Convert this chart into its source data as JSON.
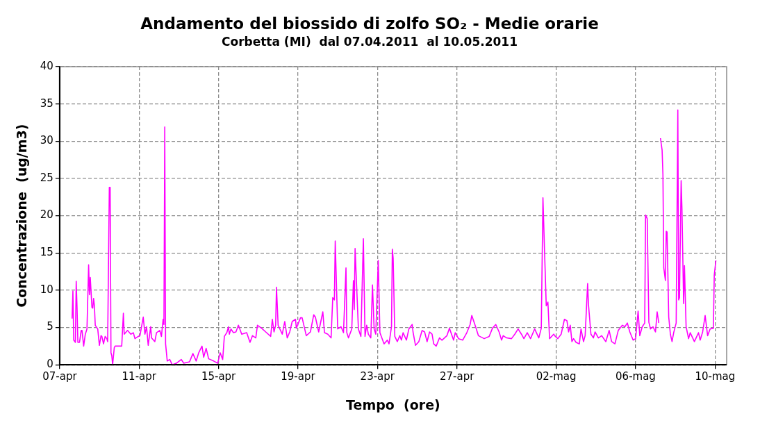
{
  "chart_data": {
    "type": "line",
    "title": "Andamento del biossido di zolfo SO₂ - Medie orarie",
    "subtitle": "Corbetta (MI)  dal 07.04.2011  al 10.05.2011",
    "xlabel": "Tempo  (ore)",
    "ylabel": "Concentrazione  (ug/m3)",
    "xlim": [
      "2011-04-07T00:00",
      "2011-05-10T14:00"
    ],
    "xticks": [
      {
        "value": "2011-04-07",
        "label": "07-apr"
      },
      {
        "value": "2011-04-11",
        "label": "11-apr"
      },
      {
        "value": "2011-04-15",
        "label": "15-apr"
      },
      {
        "value": "2011-04-19",
        "label": "19-apr"
      },
      {
        "value": "2011-04-23",
        "label": "23-apr"
      },
      {
        "value": "2011-04-27",
        "label": "27-apr"
      },
      {
        "value": "2011-05-02",
        "label": "02-mag"
      },
      {
        "value": "2011-05-06",
        "label": "06-mag"
      },
      {
        "value": "2011-05-10",
        "label": "10-mag"
      }
    ],
    "ylim": [
      0,
      40
    ],
    "yticks": [
      0,
      5,
      10,
      15,
      20,
      25,
      30,
      35,
      40
    ],
    "grid": true,
    "line_style": "solid",
    "series": [
      {
        "color": "#ff00ff",
        "x": [
          "2011-04-07T15:00",
          "2011-04-07T16:00",
          "2011-04-07T17:00",
          "2011-04-07T19:00",
          "2011-04-07T20:00",
          "2011-04-07T21:00",
          "2011-04-07T22:00",
          "2011-04-08T00:00",
          "2011-04-08T02:00",
          "2011-04-08T03:00",
          "2011-04-08T05:00",
          "2011-04-08T07:00",
          "2011-04-08T09:00",
          "2011-04-08T11:00",
          "2011-04-08T12:00",
          "2011-04-08T13:00",
          "2011-04-08T15:00",
          "2011-04-08T16:00",
          "2011-04-08T17:00",
          "2011-04-08T18:00",
          "2011-04-08T19:00",
          "2011-04-08T22:00",
          "2011-04-09T00:00",
          "2011-04-09T02:00",
          "2011-04-09T03:00",
          "2011-04-09T05:00",
          "2011-04-09T07:00",
          "2011-04-09T09:00",
          "2011-04-09T10:00",
          "2011-04-09T12:00",
          "2011-04-09T13:00",
          "2011-04-09T14:00",
          "2011-04-09T15:00",
          "2011-04-09T16:00",
          "2011-04-09T18:00",
          "2011-04-09T19:00",
          "2011-04-10T03:00",
          "2011-04-10T05:00",
          "2011-04-10T06:00",
          "2011-04-10T10:00",
          "2011-04-10T14:00",
          "2011-04-10T17:00",
          "2011-04-10T19:00",
          "2011-04-10T23:00",
          "2011-04-11T01:00",
          "2011-04-11T05:00",
          "2011-04-11T07:00",
          "2011-04-11T09:00",
          "2011-04-11T11:00",
          "2011-04-11T14:00",
          "2011-04-11T15:00",
          "2011-04-11T19:00",
          "2011-04-11T21:00",
          "2011-04-12T01:00",
          "2011-04-12T03:00",
          "2011-04-12T05:00",
          "2011-04-12T06:00",
          "2011-04-12T07:00",
          "2011-04-12T08:00",
          "2011-04-12T10:00",
          "2011-04-12T13:00",
          "2011-04-12T16:00",
          "2011-04-12T21:00",
          "2011-04-13T03:00",
          "2011-04-13T06:00",
          "2011-04-13T13:00",
          "2011-04-13T17:00",
          "2011-04-13T21:00",
          "2011-04-14T00:00",
          "2011-04-14T04:00",
          "2011-04-14T06:00",
          "2011-04-14T09:00",
          "2011-04-14T12:00",
          "2011-04-14T18:00",
          "2011-04-14T23:00",
          "2011-04-15T02:00",
          "2011-04-15T05:00",
          "2011-04-15T07:00",
          "2011-04-15T10:00",
          "2011-04-15T12:00",
          "2011-04-15T13:00",
          "2011-04-15T15:00",
          "2011-04-15T18:00",
          "2011-04-15T21:00",
          "2011-04-16T00:00",
          "2011-04-16T04:00",
          "2011-04-16T10:00",
          "2011-04-16T14:00",
          "2011-04-16T17:00",
          "2011-04-16T21:00",
          "2011-04-16T23:00",
          "2011-04-17T04:00",
          "2011-04-17T09:00",
          "2011-04-17T15:00",
          "2011-04-17T17:00",
          "2011-04-17T19:00",
          "2011-04-17T21:00",
          "2011-04-17T22:00",
          "2011-04-18T00:00",
          "2011-04-18T05:00",
          "2011-04-18T08:00",
          "2011-04-18T11:00",
          "2011-04-18T14:00",
          "2011-04-18T17:00",
          "2011-04-18T21:00",
          "2011-04-18T22:00",
          "2011-04-19T03:00",
          "2011-04-19T05:00",
          "2011-04-19T10:00",
          "2011-04-19T15:00",
          "2011-04-19T19:00",
          "2011-04-19T21:00",
          "2011-04-20T01:00",
          "2011-04-20T06:00",
          "2011-04-20T08:00",
          "2011-04-20T12:00",
          "2011-04-20T16:00",
          "2011-04-20T18:00",
          "2011-04-20T20:00",
          "2011-04-20T21:00",
          "2011-04-21T00:00",
          "2011-04-21T04:00",
          "2011-04-21T07:00",
          "2011-04-21T10:00",
          "2011-04-21T11:00",
          "2011-04-21T13:00",
          "2011-04-21T17:00",
          "2011-04-21T19:00",
          "2011-04-21T20:00",
          "2011-04-21T21:00",
          "2011-04-22T01:00",
          "2011-04-22T04:00",
          "2011-04-22T07:00",
          "2011-04-22T09:00",
          "2011-04-22T11:00",
          "2011-04-22T13:00",
          "2011-04-22T16:00",
          "2011-04-22T18:00",
          "2011-04-22T20:00",
          "2011-04-22T22:00",
          "2011-04-23T01:00",
          "2011-04-23T03:00",
          "2011-04-23T08:00",
          "2011-04-23T12:00",
          "2011-04-23T14:00",
          "2011-04-23T17:00",
          "2011-04-23T18:00",
          "2011-04-23T19:00",
          "2011-04-23T21:00",
          "2011-04-24T00:00",
          "2011-04-24T03:00",
          "2011-04-24T05:00",
          "2011-04-24T07:00",
          "2011-04-24T11:00",
          "2011-04-24T14:00",
          "2011-04-24T18:00",
          "2011-04-24T19:00",
          "2011-04-24T22:00",
          "2011-04-25T02:00",
          "2011-04-25T06:00",
          "2011-04-25T09:00",
          "2011-04-25T12:00",
          "2011-04-25T15:00",
          "2011-04-25T18:00",
          "2011-04-25T20:00",
          "2011-04-25T23:00",
          "2011-04-26T03:00",
          "2011-04-26T06:00",
          "2011-04-26T12:00",
          "2011-04-26T15:00",
          "2011-04-26T20:00",
          "2011-04-26T22:00",
          "2011-04-27T02:00",
          "2011-04-27T07:00",
          "2011-04-27T12:00",
          "2011-04-27T16:00",
          "2011-04-27T18:00",
          "2011-04-27T22:00",
          "2011-04-28T02:00",
          "2011-04-28T09:00",
          "2011-04-28T15:00",
          "2011-04-28T19:00",
          "2011-04-28T23:00",
          "2011-04-29T03:00",
          "2011-04-29T06:00",
          "2011-04-29T08:00",
          "2011-04-29T12:00",
          "2011-04-29T18:00",
          "2011-04-29T22:00",
          "2011-04-30T02:00",
          "2011-04-30T06:00",
          "2011-04-30T09:00",
          "2011-04-30T13:00",
          "2011-04-30T17:00",
          "2011-04-30T22:00",
          "2011-05-01T03:00",
          "2011-05-01T06:00",
          "2011-05-01T08:00",
          "2011-05-01T10:00",
          "2011-05-01T12:00",
          "2011-05-01T14:00",
          "2011-05-01T16:00",
          "2011-05-01T21:00",
          "2011-05-01T23:00",
          "2011-05-02T02:00",
          "2011-05-02T06:00",
          "2011-05-02T10:00",
          "2011-05-02T13:00",
          "2011-05-02T15:00",
          "2011-05-02T17:00",
          "2011-05-02T19:00",
          "2011-05-02T21:00",
          "2011-05-03T00:00",
          "2011-05-03T04:00",
          "2011-05-03T06:00",
          "2011-05-03T09:00",
          "2011-05-03T11:00",
          "2011-05-03T14:00",
          "2011-05-03T15:00",
          "2011-05-03T18:00",
          "2011-05-03T21:00",
          "2011-05-03T23:00",
          "2011-05-04T03:00",
          "2011-05-04T07:00",
          "2011-05-04T12:00",
          "2011-05-04T16:00",
          "2011-05-04T19:00",
          "2011-05-04T23:00",
          "2011-05-05T03:00",
          "2011-05-05T08:00",
          "2011-05-05T11:00",
          "2011-05-05T14:00",
          "2011-05-05T17:00",
          "2011-05-05T21:00",
          "2011-05-06T00:00",
          "2011-05-06T03:00",
          "2011-05-06T05:00",
          "2011-05-06T08:00",
          "2011-05-06T11:00",
          "2011-05-06T12:00",
          "2011-05-06T14:00",
          "2011-05-06T16:00",
          "2011-05-06T18:00",
          "2011-05-06T21:00",
          "2011-05-07T00:00",
          "2011-05-07T02:00",
          "2011-05-07T04:00",
          "2011-05-07T05:00",
          "2011-05-07T06:00",
          "2011-05-07T08:00",
          "2011-05-07T09:00",
          "2011-05-07T10:00",
          "2011-05-07T12:00",
          "2011-05-07T13:00",
          "2011-05-07T14:00",
          "2011-05-07T16:00",
          "2011-05-07T18:00",
          "2011-05-07T20:00",
          "2011-05-07T22:00",
          "2011-05-08T01:00",
          "2011-05-08T03:00",
          "2011-05-08T04:00",
          "2011-05-08T05:00",
          "2011-05-08T07:00",
          "2011-05-08T08:00",
          "2011-05-08T10:00",
          "2011-05-08T11:00",
          "2011-05-08T13:00",
          "2011-05-08T16:00",
          "2011-05-08T18:00",
          "2011-05-08T23:00",
          "2011-05-09T04:00",
          "2011-05-09T06:00",
          "2011-05-09T09:00",
          "2011-05-09T12:00",
          "2011-05-09T15:00",
          "2011-05-09T18:00",
          "2011-05-09T22:00",
          "2011-05-09T23:00",
          "2011-05-10T01:00"
        ],
        "values": [
          6.2,
          9.9,
          3.3,
          3.0,
          11.2,
          7.7,
          3.0,
          3.0,
          4.6,
          4.6,
          2.5,
          4.1,
          4.8,
          13.4,
          9.4,
          11.7,
          7.7,
          7.6,
          8.9,
          7.9,
          5.3,
          4.8,
          2.6,
          3.9,
          3.8,
          2.8,
          3.8,
          3.5,
          3.1,
          23.8,
          23.8,
          1.6,
          1.2,
          0,
          2.3,
          2.5,
          2.5,
          6.9,
          4.1,
          4.6,
          4.1,
          4.3,
          3.5,
          3.8,
          3.9,
          6.4,
          4.1,
          5.1,
          2.6,
          5.1,
          3.6,
          3.1,
          4.3,
          4.6,
          3.8,
          6.1,
          5.4,
          31.9,
          2.8,
          0.5,
          0.7,
          0,
          0.2,
          0.7,
          0.2,
          0.4,
          1.5,
          0.5,
          1.6,
          2.5,
          1.0,
          2.2,
          0.8,
          0.5,
          0.2,
          1.6,
          0.7,
          3.8,
          4.3,
          5.1,
          4.1,
          4.8,
          4.3,
          4.4,
          5.3,
          4.1,
          4.3,
          3.0,
          3.9,
          3.6,
          5.3,
          4.9,
          4.4,
          3.8,
          6.1,
          4.4,
          5.3,
          10.4,
          5.3,
          4.1,
          5.8,
          3.6,
          4.4,
          5.8,
          6.1,
          4.9,
          6.3,
          6.3,
          3.9,
          4.4,
          6.7,
          6.4,
          4.4,
          7.1,
          4.3,
          4.1,
          3.6,
          9.0,
          8.7,
          16.6,
          4.8,
          5.1,
          4.3,
          13.0,
          4.3,
          3.6,
          4.8,
          11.3,
          7.4,
          15.6,
          4.8,
          3.8,
          16.9,
          3.8,
          5.3,
          4.1,
          3.6,
          10.7,
          4.8,
          4.1,
          14.0,
          4.3,
          2.8,
          3.3,
          2.8,
          5.1,
          15.5,
          14.3,
          3.8,
          3.1,
          3.9,
          3.3,
          4.3,
          3.3,
          4.8,
          5.4,
          4.4,
          2.6,
          3.1,
          4.6,
          4.4,
          3.1,
          4.4,
          4.1,
          2.8,
          2.5,
          3.6,
          3.3,
          3.9,
          4.9,
          3.3,
          4.3,
          3.5,
          3.3,
          4.3,
          5.4,
          6.6,
          5.3,
          3.9,
          3.5,
          3.8,
          4.9,
          5.4,
          4.4,
          3.3,
          3.9,
          3.6,
          3.5,
          4.1,
          4.8,
          4.1,
          3.5,
          4.3,
          3.5,
          4.8,
          3.6,
          4.9,
          22.4,
          15.0,
          7.9,
          8.4,
          3.5,
          4.1,
          3.8,
          3.5,
          4.1,
          6.1,
          5.9,
          4.4,
          5.3,
          3.1,
          3.5,
          3.0,
          2.8,
          4.8,
          3.1,
          3.9,
          10.9,
          8.1,
          4.1,
          3.6,
          4.4,
          3.6,
          3.9,
          3.1,
          4.6,
          3.1,
          2.8,
          4.6,
          5.3,
          5.1,
          5.6,
          4.4,
          3.3,
          3.5,
          7.2,
          3.9,
          5.1,
          5.6,
          20.1,
          19.6,
          5.7,
          4.8,
          5.1,
          4.4,
          7.1,
          5.6,
          null,
          30.4,
          28.8,
          25.5,
          13.0,
          11.3,
          17.9,
          17.8,
          6.4,
          4.1,
          3.1,
          4.3,
          5.6,
          34.2,
          8.7,
          9.0,
          24.7,
          20.9,
          8.2,
          13.3,
          5.1,
          3.5,
          4.3,
          3.1,
          4.3,
          3.3,
          4.4,
          6.6,
          3.9,
          4.8,
          4.9,
          12.0,
          14.0
        ]
      }
    ]
  }
}
